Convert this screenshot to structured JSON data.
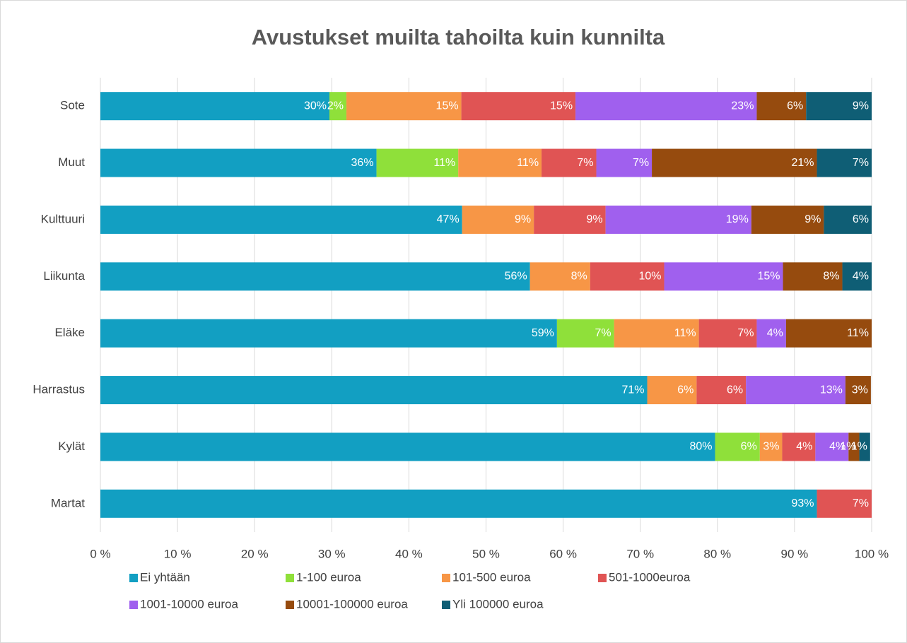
{
  "chart_data": {
    "type": "stacked-barh",
    "title": "Avustukset muilta tahoilta kuin kunnilta",
    "categories": [
      "Sote",
      "Muut",
      "Kulttuuri",
      "Liikunta",
      "Eläke",
      "Harrastus",
      "Kylät",
      "Martat"
    ],
    "series": [
      {
        "name": "Ei yhtään",
        "color": "#129fc2",
        "values": [
          29.7,
          35.8,
          46.9,
          55.7,
          59.2,
          70.9,
          79.7,
          92.9
        ],
        "value_labels": [
          "30%",
          "36%",
          "47%",
          "56%",
          "59%",
          "71%",
          "80%",
          "93%"
        ]
      },
      {
        "name": "1-100 euroa",
        "color": "#8fe03a",
        "values": [
          2.2,
          10.6,
          null,
          null,
          7.4,
          null,
          5.8,
          null
        ],
        "value_labels": [
          "2%",
          "11%",
          null,
          null,
          "7%",
          null,
          "6%",
          null
        ]
      },
      {
        "name": "101-500 euroa",
        "color": "#f79646",
        "values": [
          14.9,
          10.8,
          9.3,
          7.8,
          11.0,
          6.4,
          2.9,
          null
        ],
        "value_labels": [
          "15%",
          "11%",
          "9%",
          "8%",
          "11%",
          "6%",
          "3%",
          null
        ]
      },
      {
        "name": "501-1000euroa",
        "color": "#e05454",
        "values": [
          14.8,
          7.1,
          9.3,
          9.6,
          7.5,
          6.4,
          4.3,
          7.1
        ],
        "value_labels": [
          "15%",
          "7%",
          "9%",
          "10%",
          "7%",
          "6%",
          "4%",
          "7%"
        ]
      },
      {
        "name": "1001-10000 euroa",
        "color": "#a060ee",
        "values": [
          23.5,
          7.2,
          18.9,
          15.4,
          3.8,
          12.9,
          4.3,
          null
        ],
        "value_labels": [
          "23%",
          "7%",
          "19%",
          "15%",
          "4%",
          "13%",
          "4%",
          null
        ]
      },
      {
        "name": "10001-100000 euroa",
        "color": "#964b0e",
        "values": [
          6.4,
          21.4,
          9.4,
          7.7,
          11.1,
          3.3,
          1.4,
          null
        ],
        "value_labels": [
          "6%",
          "21%",
          "9%",
          "8%",
          "11%",
          "3%",
          "1%",
          null
        ]
      },
      {
        "name": "Yli 100000 euroa",
        "color": "#0f5e75",
        "values": [
          8.5,
          7.1,
          6.2,
          3.8,
          null,
          null,
          1.4,
          null
        ],
        "value_labels": [
          "9%",
          "7%",
          "6%",
          "4%",
          null,
          null,
          "1%",
          null
        ]
      }
    ],
    "xlim": [
      0,
      100
    ],
    "xticks": [
      {
        "value": 0,
        "label": "0 %"
      },
      {
        "value": 10,
        "label": "10 %"
      },
      {
        "value": 20,
        "label": "20 %"
      },
      {
        "value": 30,
        "label": "30 %"
      },
      {
        "value": 40,
        "label": "40 %"
      },
      {
        "value": 50,
        "label": "50 %"
      },
      {
        "value": 60,
        "label": "60 %"
      },
      {
        "value": 70,
        "label": "70 %"
      },
      {
        "value": 80,
        "label": "80 %"
      },
      {
        "value": 90,
        "label": "90 %"
      },
      {
        "value": 100,
        "label": "100 %"
      }
    ],
    "grid": true,
    "legend": "bottom"
  }
}
